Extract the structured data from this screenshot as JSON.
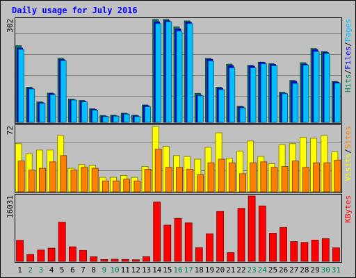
{
  "colors": {
    "background": "#c0c0c0",
    "panel": "#c0c0c0",
    "title": "#0000ff",
    "grid": "#808080",
    "hits": "#00805c",
    "files": "#0000ff",
    "pages": "#00c0ff",
    "visits": "#ffff00",
    "sites": "#ff8000",
    "kbytes": "#ff0000",
    "weekend_day": "#00805c",
    "weekday": "#000000",
    "legend_separator": "#000000"
  },
  "chart_data": {
    "title": "Daily usage for July 2016",
    "days": [
      "1",
      "2",
      "3",
      "4",
      "5",
      "6",
      "7",
      "8",
      "9",
      "10",
      "11",
      "12",
      "13",
      "14",
      "15",
      "16",
      "17",
      "18",
      "19",
      "20",
      "21",
      "22",
      "23",
      "24",
      "25",
      "26",
      "27",
      "28",
      "29",
      "30",
      "31"
    ],
    "weekend_days": [
      "2",
      "3",
      "9",
      "10",
      "16",
      "17",
      "23",
      "24",
      "30",
      "31"
    ],
    "charts": [
      {
        "type": "bar",
        "name": "pages_files_hits",
        "ymax_label": "302",
        "ymax": 302,
        "legend": [
          "Pages",
          "Files",
          "Hits"
        ],
        "series": [
          {
            "name": "Hits",
            "values": [
              225,
              103,
              60,
              86,
              188,
              68,
              64,
              40,
              20,
              21,
              27,
              21,
              51,
              302,
              302,
              280,
              298,
              85,
              188,
              103,
              171,
              47,
              167,
              177,
              172,
              88,
              123,
              175,
              217,
              208,
              120
            ]
          },
          {
            "name": "Files",
            "values": [
              218,
              100,
              58,
              84,
              184,
              66,
              62,
              38,
              18,
              19,
              25,
              19,
              49,
              295,
              298,
              274,
              294,
              80,
              185,
              100,
              166,
              45,
              165,
              176,
              170,
              86,
              120,
              171,
              213,
              205,
              118
            ]
          },
          {
            "name": "Pages",
            "values": [
              214,
              98,
              56,
              81,
              181,
              65,
              60,
              36,
              17,
              18,
              24,
              17,
              46,
              290,
              295,
              268,
              290,
              78,
              180,
              96,
              160,
              42,
              160,
              172,
              166,
              84,
              114,
              168,
              208,
              202,
              115
            ]
          }
        ]
      },
      {
        "type": "bar",
        "name": "sites_visits",
        "ymax_label": "72",
        "ymax": 72,
        "legend": [
          "Sites",
          "Visits"
        ],
        "series": [
          {
            "name": "Visits",
            "values": [
              53,
              42,
              46,
              46,
              62,
              26,
              30,
              29,
              16,
              16,
              18,
              16,
              28,
              72,
              50,
              40,
              39,
              36,
              49,
              65,
              37,
              45,
              56,
              39,
              31,
              52,
              53,
              60,
              59,
              62,
              44
            ]
          },
          {
            "name": "Sites",
            "values": [
              34,
              24,
              26,
              33,
              40,
              24,
              27,
              26,
              12,
              12,
              14,
              12,
              25,
              47,
              27,
              27,
              25,
              19,
              32,
              36,
              32,
              20,
              32,
              33,
              27,
              28,
              34,
              27,
              32,
              32,
              35
            ]
          }
        ]
      },
      {
        "type": "bar",
        "name": "kbytes",
        "ymax_label": "16031",
        "ymax": 16031,
        "legend": [
          "KBytes"
        ],
        "series": [
          {
            "name": "KBytes",
            "values": [
              5155,
              1687,
              2763,
              3229,
              9610,
              3563,
              2679,
              1121,
              442,
              515,
              454,
              369,
              1139,
              14555,
              8889,
              10544,
              9432,
              3345,
              6750,
              12229,
              2124,
              12993,
              16031,
              13588,
              6899,
              8299,
              4849,
              4640,
              5215,
              5571,
              3317
            ]
          }
        ]
      }
    ]
  }
}
